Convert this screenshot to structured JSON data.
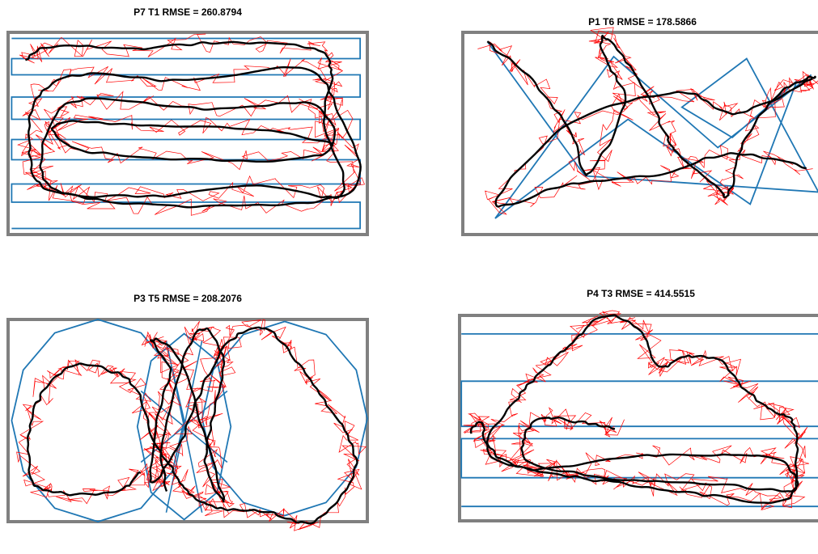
{
  "chart_data": [
    {
      "type": "line",
      "title": "P7 T1 RMSE = 260.8794",
      "colors": {
        "frame": "#808080",
        "target": "#1f77b4",
        "raw": "#ff0000",
        "smoothed": "#000000"
      },
      "target_path": [
        [
          0.01,
          0.03
        ],
        [
          0.98,
          0.03
        ],
        [
          0.98,
          0.13
        ],
        [
          0.01,
          0.13
        ],
        [
          0.01,
          0.21
        ],
        [
          0.98,
          0.21
        ],
        [
          0.98,
          0.32
        ],
        [
          0.01,
          0.32
        ],
        [
          0.01,
          0.43
        ],
        [
          0.98,
          0.43
        ],
        [
          0.98,
          0.53
        ],
        [
          0.01,
          0.53
        ],
        [
          0.01,
          0.63
        ],
        [
          0.98,
          0.63
        ],
        [
          0.98,
          0.75
        ],
        [
          0.01,
          0.75
        ],
        [
          0.01,
          0.84
        ],
        [
          0.98,
          0.84
        ],
        [
          0.98,
          0.97
        ],
        [
          0.01,
          0.97
        ]
      ],
      "smoothed_path": [
        [
          0.05,
          0.14
        ],
        [
          0.12,
          0.07
        ],
        [
          0.35,
          0.08
        ],
        [
          0.6,
          0.05
        ],
        [
          0.85,
          0.08
        ],
        [
          0.9,
          0.2
        ],
        [
          0.88,
          0.45
        ],
        [
          0.93,
          0.8
        ],
        [
          0.7,
          0.76
        ],
        [
          0.4,
          0.81
        ],
        [
          0.12,
          0.78
        ],
        [
          0.06,
          0.6
        ],
        [
          0.08,
          0.33
        ],
        [
          0.2,
          0.21
        ],
        [
          0.5,
          0.24
        ],
        [
          0.82,
          0.18
        ],
        [
          0.92,
          0.4
        ],
        [
          0.96,
          0.78
        ],
        [
          0.6,
          0.86
        ],
        [
          0.25,
          0.83
        ],
        [
          0.1,
          0.72
        ],
        [
          0.12,
          0.45
        ],
        [
          0.22,
          0.33
        ],
        [
          0.55,
          0.38
        ],
        [
          0.85,
          0.36
        ],
        [
          0.88,
          0.6
        ],
        [
          0.55,
          0.63
        ],
        [
          0.2,
          0.58
        ],
        [
          0.14,
          0.45
        ],
        [
          0.4,
          0.46
        ],
        [
          0.7,
          0.48
        ],
        [
          0.9,
          0.55
        ]
      ],
      "raw_jitter": 0.035
    },
    {
      "type": "line",
      "title": "P1 T6 RMSE = 178.5866",
      "colors": {
        "frame": "#808080",
        "target": "#1f77b4",
        "raw": "#ff0000",
        "smoothed": "#000000"
      },
      "target_path": [
        [
          0.07,
          0.05
        ],
        [
          0.34,
          0.71
        ],
        [
          0.99,
          0.79
        ],
        [
          0.79,
          0.13
        ],
        [
          0.61,
          0.37
        ],
        [
          0.75,
          0.52
        ],
        [
          0.93,
          0.24
        ],
        [
          0.8,
          0.85
        ],
        [
          0.46,
          0.43
        ],
        [
          0.09,
          0.92
        ],
        [
          0.42,
          0.12
        ],
        [
          0.71,
          0.57
        ],
        [
          0.97,
          0.21
        ]
      ],
      "smoothed_path": [
        [
          0.07,
          0.05
        ],
        [
          0.2,
          0.25
        ],
        [
          0.3,
          0.5
        ],
        [
          0.35,
          0.7
        ],
        [
          0.45,
          0.35
        ],
        [
          0.4,
          0.15
        ],
        [
          0.39,
          0.02
        ],
        [
          0.48,
          0.2
        ],
        [
          0.55,
          0.45
        ],
        [
          0.6,
          0.6
        ],
        [
          0.7,
          0.75
        ],
        [
          0.74,
          0.8
        ],
        [
          0.78,
          0.55
        ],
        [
          0.88,
          0.3
        ],
        [
          0.98,
          0.22
        ],
        [
          0.9,
          0.3
        ],
        [
          0.75,
          0.4
        ],
        [
          0.6,
          0.3
        ],
        [
          0.3,
          0.45
        ],
        [
          0.09,
          0.85
        ],
        [
          0.3,
          0.75
        ],
        [
          0.55,
          0.7
        ],
        [
          0.75,
          0.6
        ],
        [
          0.96,
          0.67
        ]
      ],
      "raw_jitter": 0.035
    },
    {
      "type": "line",
      "title": "P3 T5 RMSE = 208.2076",
      "colors": {
        "frame": "#808080",
        "target": "#1f77b4",
        "raw": "#ff0000",
        "smoothed": "#000000"
      },
      "target_shapes": [
        {
          "kind": "polygon",
          "cx": 0.25,
          "cy": 0.5,
          "rx": 0.24,
          "ry": 0.5,
          "sides": 12
        },
        {
          "kind": "polygon",
          "cx": 0.77,
          "cy": 0.49,
          "rx": 0.23,
          "ry": 0.48,
          "sides": 12
        },
        {
          "kind": "polygon",
          "cx": 0.49,
          "cy": 0.53,
          "rx": 0.13,
          "ry": 0.46,
          "sides": 8
        },
        {
          "kind": "spokes",
          "cx": 0.49,
          "cy": 0.53,
          "rx": 0.13,
          "ry": 0.46,
          "count": 8
        }
      ],
      "smoothed_path": [
        [
          0.37,
          0.75
        ],
        [
          0.3,
          0.85
        ],
        [
          0.15,
          0.86
        ],
        [
          0.07,
          0.8
        ],
        [
          0.06,
          0.55
        ],
        [
          0.1,
          0.35
        ],
        [
          0.18,
          0.23
        ],
        [
          0.28,
          0.25
        ],
        [
          0.36,
          0.35
        ],
        [
          0.4,
          0.58
        ],
        [
          0.45,
          0.72
        ],
        [
          0.5,
          0.85
        ],
        [
          0.58,
          0.93
        ],
        [
          0.72,
          0.95
        ],
        [
          0.85,
          1.0
        ],
        [
          0.96,
          0.78
        ],
        [
          0.95,
          0.6
        ],
        [
          0.88,
          0.4
        ],
        [
          0.8,
          0.2
        ],
        [
          0.72,
          0.05
        ],
        [
          0.62,
          0.1
        ],
        [
          0.55,
          0.3
        ],
        [
          0.48,
          0.6
        ],
        [
          0.4,
          0.8
        ],
        [
          0.42,
          0.45
        ],
        [
          0.45,
          0.25
        ],
        [
          0.4,
          0.1
        ],
        [
          0.48,
          0.2
        ],
        [
          0.55,
          0.6
        ],
        [
          0.6,
          0.9
        ],
        [
          0.55,
          0.7
        ],
        [
          0.58,
          0.4
        ],
        [
          0.6,
          0.2
        ],
        [
          0.55,
          0.05
        ],
        [
          0.5,
          0.15
        ],
        [
          0.43,
          0.6
        ],
        [
          0.44,
          0.85
        ]
      ],
      "raw_jitter": 0.035
    },
    {
      "type": "line",
      "title": "P4 T3 RMSE = 414.5515",
      "colors": {
        "frame": "#808080",
        "target": "#1f77b4",
        "raw": "#ff0000",
        "smoothed": "#000000"
      },
      "target_path": [
        [
          0.005,
          0.09
        ],
        [
          1.0,
          0.09
        ],
        [
          1.0,
          0.32
        ],
        [
          0.005,
          0.32
        ],
        [
          0.005,
          0.54
        ],
        [
          0.43,
          0.54
        ],
        [
          0.52,
          0.54
        ],
        [
          1.0,
          0.54
        ],
        [
          1.0,
          0.6
        ],
        [
          0.005,
          0.6
        ],
        [
          0.005,
          0.79
        ],
        [
          1.0,
          0.79
        ],
        [
          1.0,
          0.93
        ],
        [
          0.005,
          0.93
        ]
      ],
      "smoothed_path": [
        [
          0.43,
          0.55
        ],
        [
          0.33,
          0.52
        ],
        [
          0.22,
          0.5
        ],
        [
          0.18,
          0.6
        ],
        [
          0.2,
          0.72
        ],
        [
          0.45,
          0.8
        ],
        [
          0.7,
          0.82
        ],
        [
          0.92,
          0.85
        ],
        [
          0.88,
          0.7
        ],
        [
          0.7,
          0.68
        ],
        [
          0.45,
          0.69
        ],
        [
          0.2,
          0.75
        ],
        [
          0.08,
          0.62
        ],
        [
          0.16,
          0.4
        ],
        [
          0.24,
          0.25
        ],
        [
          0.32,
          0.12
        ],
        [
          0.4,
          0.0
        ],
        [
          0.5,
          0.08
        ],
        [
          0.55,
          0.25
        ],
        [
          0.62,
          0.2
        ],
        [
          0.72,
          0.22
        ],
        [
          0.78,
          0.35
        ],
        [
          0.86,
          0.46
        ],
        [
          0.92,
          0.52
        ],
        [
          0.93,
          0.7
        ],
        [
          0.9,
          0.9
        ],
        [
          0.7,
          0.88
        ],
        [
          0.5,
          0.83
        ],
        [
          0.3,
          0.78
        ],
        [
          0.1,
          0.7
        ],
        [
          0.06,
          0.52
        ],
        [
          0.03,
          0.57
        ]
      ],
      "raw_jitter": 0.035
    }
  ]
}
